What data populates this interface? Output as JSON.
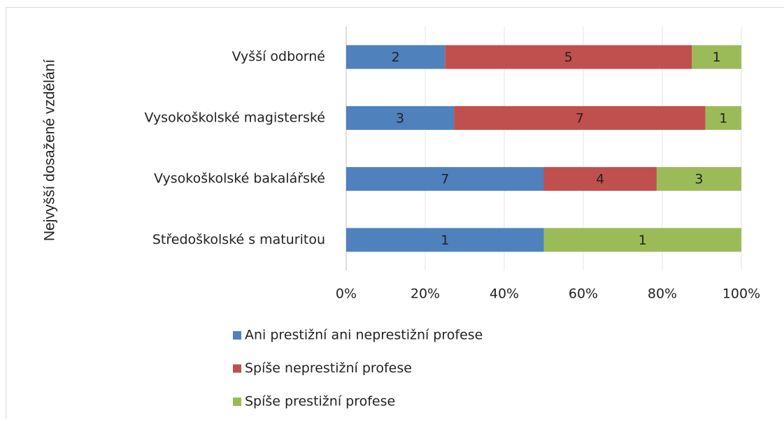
{
  "chart_data": {
    "type": "bar",
    "orientation": "horizontal",
    "stack": "percent",
    "y_axis_label": "Nejvyšší dosažené vzdělání",
    "categories": [
      "Vyšší odborné",
      "Vysokoškolské magisterské",
      "Vysokoškolské bakalářské",
      "Středoškolské s maturitou"
    ],
    "series": [
      {
        "name": "Ani prestižní ani neprestižní profese",
        "color": "#4f81bd",
        "values": [
          2,
          3,
          7,
          1
        ]
      },
      {
        "name": "Spíše neprestižní profese",
        "color": "#c0504d",
        "values": [
          5,
          7,
          4,
          null
        ]
      },
      {
        "name": "Spíše prestižní profese",
        "color": "#9bbb59",
        "values": [
          1,
          1,
          3,
          1
        ]
      }
    ],
    "xlim": [
      0,
      100
    ],
    "xticks": [
      {
        "value": 0,
        "label": "0%"
      },
      {
        "value": 20,
        "label": "20%"
      },
      {
        "value": 40,
        "label": "40%"
      },
      {
        "value": 60,
        "label": "60%"
      },
      {
        "value": 80,
        "label": "80%"
      },
      {
        "value": 100,
        "label": "100%"
      }
    ],
    "grid": true,
    "legend": "bottom"
  }
}
